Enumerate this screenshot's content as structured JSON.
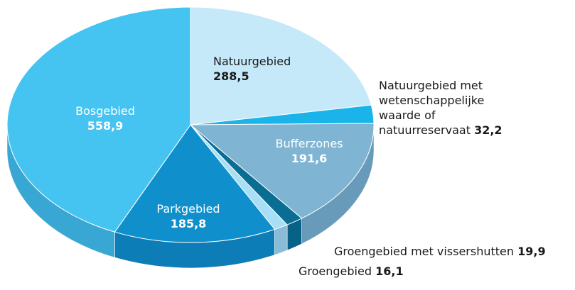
{
  "chart_data": {
    "type": "pie",
    "categories": [
      "Natuurgebied",
      "Natuurgebied met wetenschappelijke waarde of natuurreservaat",
      "Bufferzones",
      "Groengebied met vissershutten",
      "Groengebied",
      "Parkgebied",
      "Bosgebied"
    ],
    "values": [
      288.5,
      32.2,
      191.6,
      19.9,
      16.1,
      185.8,
      558.9
    ],
    "value_labels": [
      "288,5",
      "32,2",
      "191,6",
      "19,9",
      "16,1",
      "185,8",
      "558,9"
    ],
    "colors": [
      "#c6e9f9",
      "#1ab4ea",
      "#7fb5d2",
      "#0a6e94",
      "#a8dff6",
      "#0f90cd",
      "#46c4f1"
    ]
  }
}
